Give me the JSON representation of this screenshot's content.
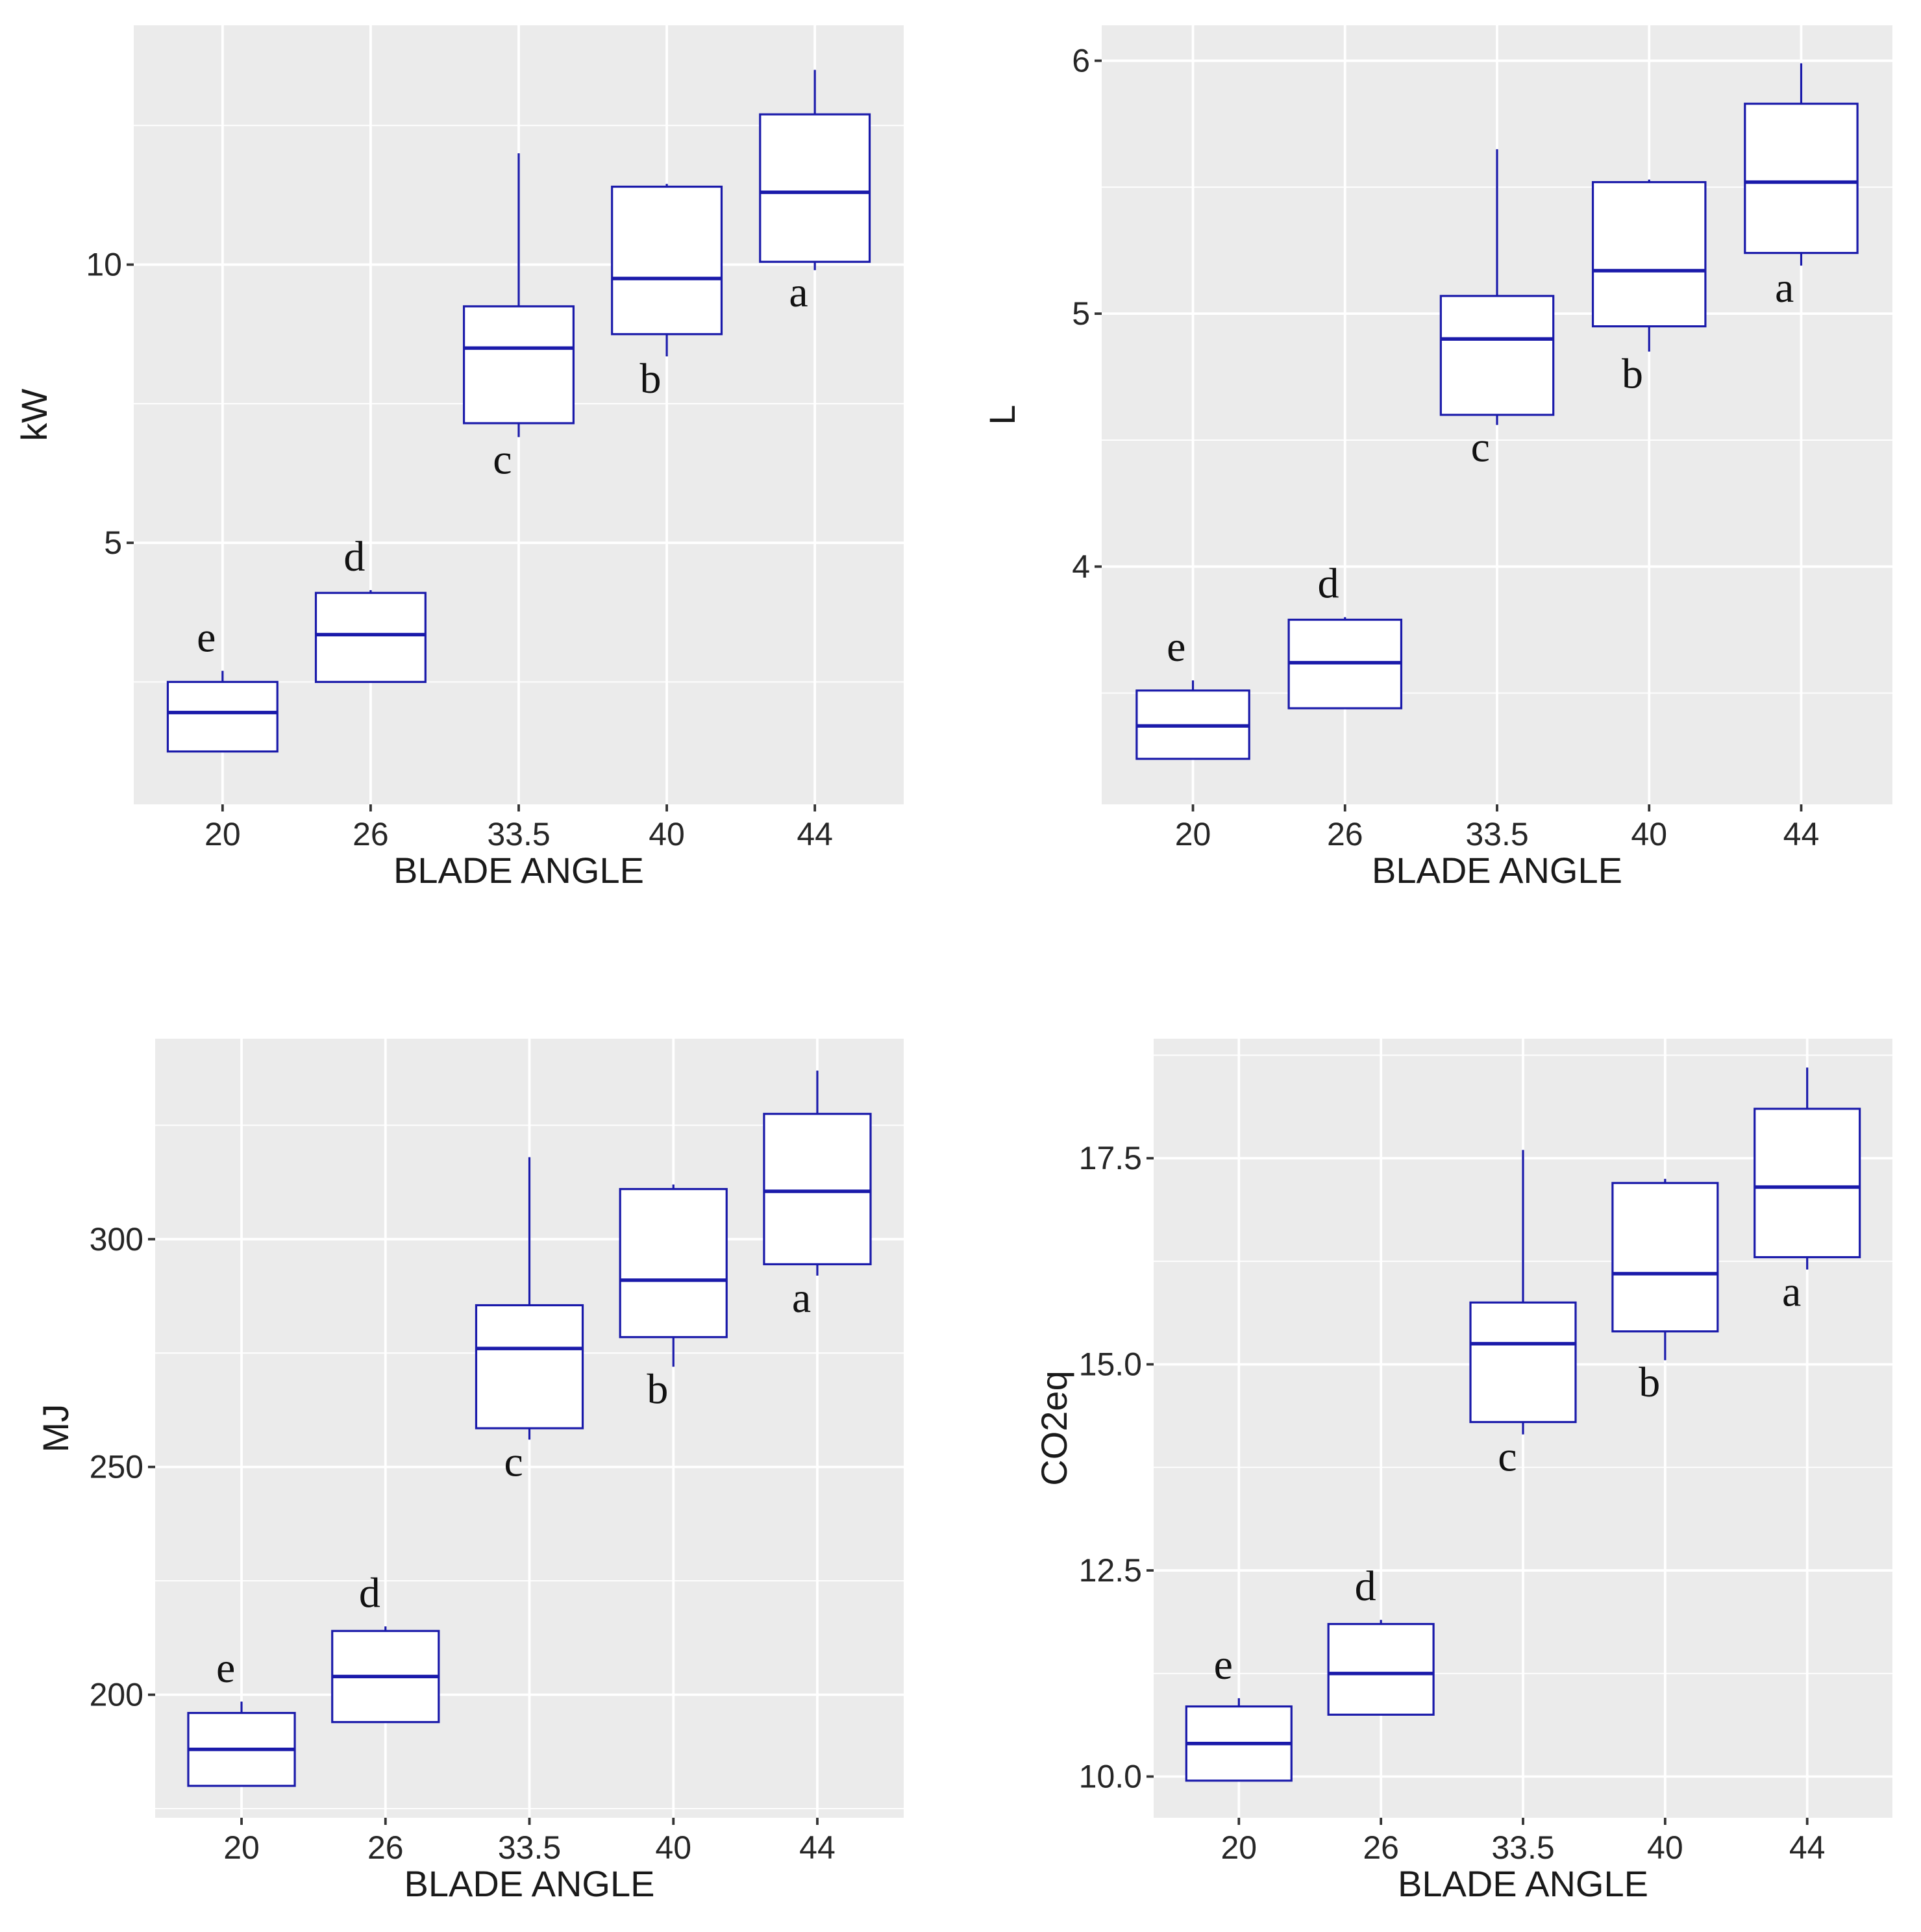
{
  "box_color": "#1a1aaa",
  "panel_background": "#ebebeb",
  "grid_color": "#ffffff",
  "chart_data": [
    {
      "type": "box",
      "xlabel": "BLADE ANGLE",
      "ylabel": "kW",
      "categories": [
        "20",
        "26",
        "33.5",
        "40",
        "44"
      ],
      "ylim": [
        0.3,
        14.3
      ],
      "yticks": [
        5,
        10
      ],
      "ytick_labels": [
        "5",
        "10"
      ],
      "boxes": [
        {
          "min": 1.25,
          "q1": 1.25,
          "median": 1.95,
          "q3": 2.5,
          "max": 2.7,
          "letter": "e"
        },
        {
          "min": 2.5,
          "q1": 2.5,
          "median": 3.35,
          "q3": 4.1,
          "max": 4.15,
          "letter": "d"
        },
        {
          "min": 6.9,
          "q1": 7.15,
          "median": 8.5,
          "q3": 9.25,
          "max": 12.0,
          "letter": "c"
        },
        {
          "min": 8.35,
          "q1": 8.75,
          "median": 9.75,
          "q3": 11.4,
          "max": 11.45,
          "letter": "b"
        },
        {
          "min": 9.9,
          "q1": 10.05,
          "median": 11.3,
          "q3": 12.7,
          "max": 13.5,
          "letter": "a"
        }
      ]
    },
    {
      "type": "box",
      "xlabel": "BLADE ANGLE",
      "ylabel": "L",
      "categories": [
        "20",
        "26",
        "33.5",
        "40",
        "44"
      ],
      "ylim": [
        3.06,
        6.14
      ],
      "yticks": [
        4,
        5,
        6
      ],
      "ytick_labels": [
        "4",
        "5",
        "6"
      ],
      "boxes": [
        {
          "min": 3.24,
          "q1": 3.24,
          "median": 3.37,
          "q3": 3.51,
          "max": 3.55,
          "letter": "e"
        },
        {
          "min": 3.44,
          "q1": 3.44,
          "median": 3.62,
          "q3": 3.79,
          "max": 3.8,
          "letter": "d"
        },
        {
          "min": 4.56,
          "q1": 4.6,
          "median": 4.9,
          "q3": 5.07,
          "max": 5.65,
          "letter": "c"
        },
        {
          "min": 4.85,
          "q1": 4.95,
          "median": 5.17,
          "q3": 5.52,
          "max": 5.53,
          "letter": "b"
        },
        {
          "min": 5.19,
          "q1": 5.24,
          "median": 5.52,
          "q3": 5.83,
          "max": 5.99,
          "letter": "a"
        }
      ]
    },
    {
      "type": "box",
      "xlabel": "BLADE ANGLE",
      "ylabel": "MJ",
      "categories": [
        "20",
        "26",
        "33.5",
        "40",
        "44"
      ],
      "ylim": [
        173,
        344
      ],
      "yticks": [
        200,
        250,
        300
      ],
      "ytick_labels": [
        "200",
        "250",
        "300"
      ],
      "boxes": [
        {
          "min": 180,
          "q1": 180,
          "median": 188,
          "q3": 196,
          "max": 198.5,
          "letter": "e"
        },
        {
          "min": 194,
          "q1": 194,
          "median": 204,
          "q3": 214,
          "max": 215,
          "letter": "d"
        },
        {
          "min": 256,
          "q1": 258.5,
          "median": 276,
          "q3": 285.5,
          "max": 318,
          "letter": "c"
        },
        {
          "min": 272,
          "q1": 278.5,
          "median": 291,
          "q3": 311,
          "max": 312,
          "letter": "b"
        },
        {
          "min": 292,
          "q1": 294.5,
          "median": 310.5,
          "q3": 327.5,
          "max": 337,
          "letter": "a"
        }
      ]
    },
    {
      "type": "box",
      "xlabel": "BLADE ANGLE",
      "ylabel": "CO2eq",
      "categories": [
        "20",
        "26",
        "33.5",
        "40",
        "44"
      ],
      "ylim": [
        9.5,
        18.95
      ],
      "yticks": [
        10.0,
        12.5,
        15.0,
        17.5
      ],
      "ytick_labels": [
        "10.0",
        "12.5",
        "15.0",
        "17.5"
      ],
      "boxes": [
        {
          "min": 9.95,
          "q1": 9.95,
          "median": 10.4,
          "q3": 10.85,
          "max": 10.95,
          "letter": "e"
        },
        {
          "min": 10.75,
          "q1": 10.75,
          "median": 11.25,
          "q3": 11.85,
          "max": 11.9,
          "letter": "d"
        },
        {
          "min": 14.15,
          "q1": 14.3,
          "median": 15.25,
          "q3": 15.75,
          "max": 17.6,
          "letter": "c"
        },
        {
          "min": 15.05,
          "q1": 15.4,
          "median": 16.1,
          "q3": 17.2,
          "max": 17.25,
          "letter": "b"
        },
        {
          "min": 16.15,
          "q1": 16.3,
          "median": 17.15,
          "q3": 18.1,
          "max": 18.6,
          "letter": "a"
        }
      ]
    }
  ]
}
